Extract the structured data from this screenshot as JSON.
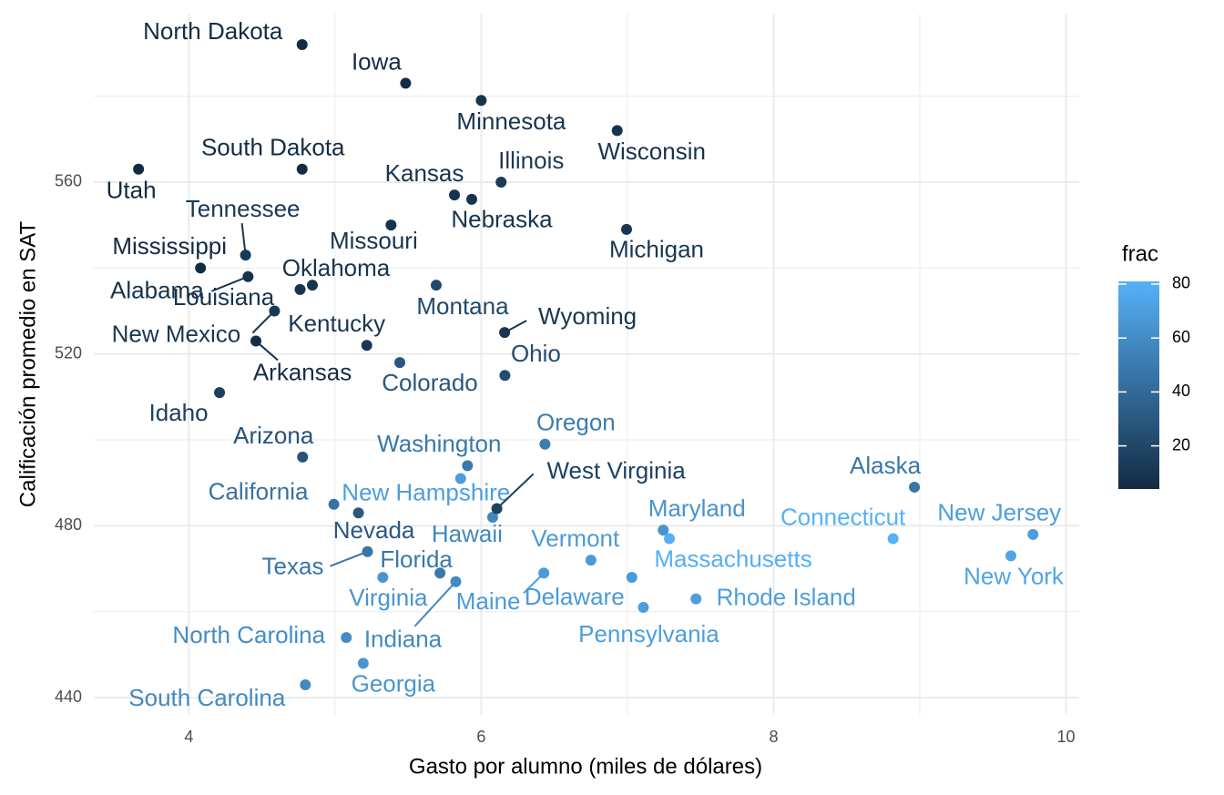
{
  "chart_data": {
    "type": "scatter",
    "x_label": "Gasto por alumno (miles de dólares)",
    "y_label": "Calificación promedio en SAT",
    "labels": [
      "Alabama",
      "Alaska",
      "Arizona",
      "Arkansas",
      "California",
      "Colorado",
      "Connecticut",
      "Delaware",
      "Florida",
      "Georgia",
      "Hawaii",
      "Idaho",
      "Illinois",
      "Indiana",
      "Iowa",
      "Kansas",
      "Kentucky",
      "Louisiana",
      "Maine",
      "Maryland",
      "Massachusetts",
      "Michigan",
      "Minnesota",
      "Mississippi",
      "Missouri",
      "Montana",
      "Nebraska",
      "Nevada",
      "New Hampshire",
      "New Jersey",
      "New Mexico",
      "New York",
      "North Carolina",
      "North Dakota",
      "Ohio",
      "Oklahoma",
      "Oregon",
      "Pennsylvania",
      "Rhode Island",
      "South Carolina",
      "South Dakota",
      "Tennessee",
      "Texas",
      "Utah",
      "Vermont",
      "Virginia",
      "Washington",
      "West Virginia",
      "Wisconsin",
      "Wyoming"
    ],
    "x": [
      4.405,
      8.963,
      4.778,
      4.459,
      4.992,
      5.443,
      8.817,
      7.03,
      5.718,
      5.193,
      6.078,
      4.21,
      6.136,
      5.826,
      5.483,
      5.817,
      5.217,
      4.761,
      6.428,
      7.245,
      7.287,
      6.994,
      6.0,
      4.08,
      5.383,
      5.692,
      5.935,
      5.16,
      5.859,
      9.774,
      4.586,
      9.623,
      5.077,
      4.775,
      6.162,
      4.845,
      6.436,
      7.109,
      7.469,
      4.797,
      4.775,
      4.388,
      5.222,
      3.656,
      6.75,
      5.327,
      5.906,
      6.107,
      6.93,
      6.16
    ],
    "values": [
      538,
      489,
      496,
      523,
      485,
      518,
      477,
      468,
      469,
      448,
      482,
      511,
      560,
      467,
      583,
      557,
      522,
      535,
      469,
      479,
      477,
      549,
      579,
      540,
      550,
      536,
      556,
      483,
      491,
      478,
      530,
      473,
      454,
      592,
      515,
      536,
      499,
      461,
      463,
      443,
      563,
      543,
      474,
      563,
      472,
      468,
      494,
      484,
      572,
      525
    ],
    "frac": [
      8,
      47,
      27,
      6,
      45,
      29,
      81,
      68,
      48,
      65,
      57,
      15,
      13,
      58,
      5,
      9,
      11,
      9,
      68,
      64,
      80,
      11,
      9,
      4,
      9,
      21,
      9,
      30,
      70,
      70,
      11,
      74,
      60,
      5,
      23,
      9,
      51,
      70,
      70,
      58,
      5,
      12,
      47,
      4,
      68,
      65,
      48,
      17,
      9,
      10
    ],
    "xlim": [
      3.35,
      10.09
    ],
    "ylim": [
      436,
      599.2
    ],
    "xticks": [
      4,
      6,
      8,
      10
    ],
    "yticks": [
      440,
      480,
      520,
      560
    ],
    "grid": true,
    "colorbar": {
      "title": "frac",
      "ticks": [
        20,
        40,
        60,
        80
      ],
      "low": "#132B43",
      "high": "#56B1F7"
    }
  }
}
